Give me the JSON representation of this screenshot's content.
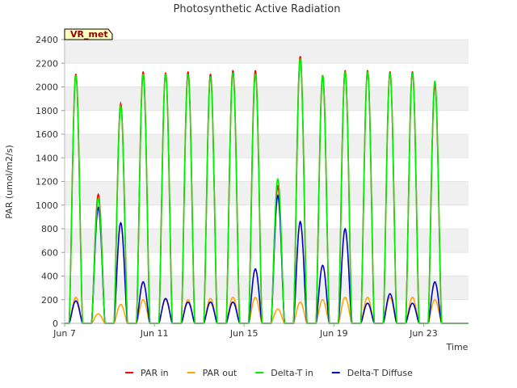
{
  "chart_data": {
    "type": "line",
    "title": "Photosynthetic Active Radiation",
    "xlabel": "Time",
    "ylabel": "PAR (umol/m2/s)",
    "site_label": "VR_met",
    "ylim": [
      0,
      2400
    ],
    "xlim": [
      7.0,
      25.0
    ],
    "y_ticks": [
      0,
      200,
      400,
      600,
      800,
      1000,
      1200,
      1400,
      1600,
      1800,
      2000,
      2200,
      2400
    ],
    "x_ticks": [
      {
        "value": 7,
        "label": "Jun 7"
      },
      {
        "value": 11,
        "label": "Jun 11"
      },
      {
        "value": 15,
        "label": "Jun 15"
      },
      {
        "value": 19,
        "label": "Jun 19"
      },
      {
        "value": 23,
        "label": "Jun 23"
      }
    ],
    "grid": "horizontal bands",
    "legend_position": "bottom",
    "days": [
      7,
      8,
      9,
      10,
      11,
      12,
      13,
      14,
      15,
      16,
      17,
      18,
      19,
      20,
      21,
      22,
      23,
      24
    ],
    "series": [
      {
        "name": "PAR in",
        "color": "#ff0000",
        "daily_peaks": [
          2110,
          1090,
          1860,
          2130,
          2120,
          2130,
          2110,
          2140,
          2140,
          1160,
          2260,
          2100,
          2140,
          2140,
          2130,
          2130,
          2020,
          0
        ]
      },
      {
        "name": "PAR out",
        "color": "#ffa500",
        "daily_peaks": [
          220,
          80,
          160,
          200,
          200,
          200,
          210,
          220,
          220,
          120,
          180,
          200,
          220,
          220,
          220,
          220,
          200,
          0
        ]
      },
      {
        "name": "Delta-T in",
        "color": "#00ee00",
        "daily_peaks": [
          2100,
          1060,
          1840,
          2110,
          2110,
          2110,
          2090,
          2120,
          2110,
          1220,
          2240,
          2100,
          2130,
          2130,
          2120,
          2120,
          2050,
          0
        ]
      },
      {
        "name": "Delta-T Diffuse",
        "color": "#0000cc",
        "daily_peaks": [
          190,
          980,
          850,
          350,
          210,
          180,
          180,
          180,
          460,
          1080,
          860,
          490,
          800,
          170,
          250,
          170,
          350,
          0
        ]
      }
    ]
  }
}
